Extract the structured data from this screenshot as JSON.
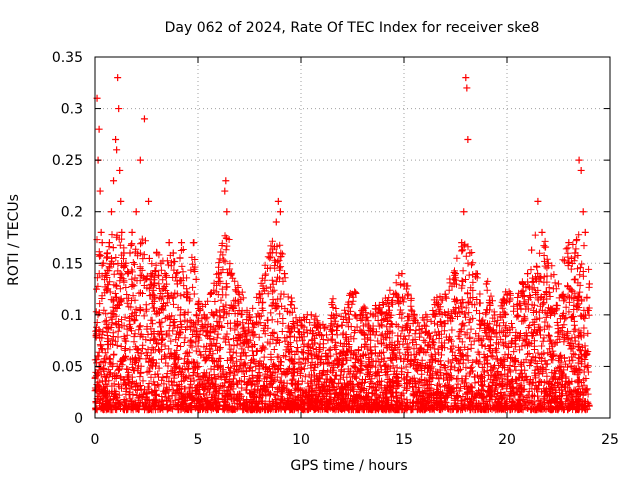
{
  "chart_data": {
    "type": "scatter",
    "title": "Day 062 of 2024, Rate Of TEC Index for receiver ske8",
    "xlabel": "GPS time / hours",
    "ylabel": "ROTI / TECUs",
    "xlim": [
      0,
      25
    ],
    "ylim": [
      0,
      0.35
    ],
    "x_ticks": [
      0,
      5,
      10,
      15,
      20,
      25
    ],
    "x_tick_labels": [
      "0",
      "5",
      "10",
      "15",
      "20",
      "25"
    ],
    "y_ticks": [
      0,
      0.05,
      0.1,
      0.15,
      0.2,
      0.25,
      0.3,
      0.35
    ],
    "y_tick_labels": [
      "0",
      "0.05",
      "0.1",
      "0.15",
      "0.2",
      "0.25",
      "0.3",
      "0.35"
    ],
    "grid": true,
    "marker": "+",
    "color": "#ff0000",
    "series": [
      {
        "name": "ROTI",
        "x": [
          0.05,
          0.1,
          0.15,
          0.2,
          0.25,
          0.3,
          0.35,
          0.4,
          0.5,
          0.6,
          0.7,
          0.8,
          0.9,
          1.0,
          1.05,
          1.1,
          1.15,
          1.2,
          1.25,
          1.3,
          1.4,
          1.5,
          1.6,
          1.7,
          1.8,
          2.0,
          2.2,
          2.4,
          2.6,
          2.8,
          3.0,
          3.2,
          3.4,
          3.6,
          3.8,
          4.0,
          4.2,
          4.5,
          4.8,
          5.0,
          5.3,
          5.6,
          6.0,
          6.3,
          6.35,
          6.4,
          6.6,
          7.0,
          7.5,
          8.0,
          8.5,
          8.8,
          8.9,
          9.0,
          9.2,
          9.5,
          10.0,
          10.5,
          11.0,
          11.5,
          12.0,
          12.5,
          13.0,
          13.5,
          14.0,
          14.5,
          14.9,
          15.0,
          15.2,
          15.5,
          16.0,
          16.5,
          17.0,
          17.5,
          17.8,
          17.9,
          18.0,
          18.05,
          18.1,
          18.2,
          18.5,
          19.0,
          19.5,
          20.0,
          20.5,
          21.0,
          21.5,
          21.7,
          22.0,
          22.5,
          23.0,
          23.3,
          23.5,
          23.6,
          23.7,
          23.8,
          24.0
        ],
        "y": [
          0.08,
          0.31,
          0.25,
          0.28,
          0.22,
          0.18,
          0.17,
          0.15,
          0.14,
          0.16,
          0.17,
          0.2,
          0.23,
          0.27,
          0.26,
          0.33,
          0.3,
          0.24,
          0.21,
          0.18,
          0.16,
          0.15,
          0.14,
          0.16,
          0.18,
          0.2,
          0.25,
          0.29,
          0.21,
          0.14,
          0.16,
          0.15,
          0.14,
          0.17,
          0.16,
          0.13,
          0.17,
          0.12,
          0.17,
          0.11,
          0.1,
          0.12,
          0.14,
          0.22,
          0.23,
          0.2,
          0.14,
          0.12,
          0.1,
          0.12,
          0.16,
          0.19,
          0.21,
          0.2,
          0.14,
          0.11,
          0.09,
          0.1,
          0.08,
          0.11,
          0.09,
          0.12,
          0.1,
          0.1,
          0.11,
          0.12,
          0.14,
          0.13,
          0.12,
          0.1,
          0.09,
          0.11,
          0.12,
          0.14,
          0.17,
          0.2,
          0.33,
          0.32,
          0.27,
          0.16,
          0.14,
          0.13,
          0.09,
          0.12,
          0.11,
          0.14,
          0.21,
          0.18,
          0.15,
          0.13,
          0.17,
          0.16,
          0.25,
          0.24,
          0.2,
          0.18,
          0.13
        ]
      }
    ]
  }
}
